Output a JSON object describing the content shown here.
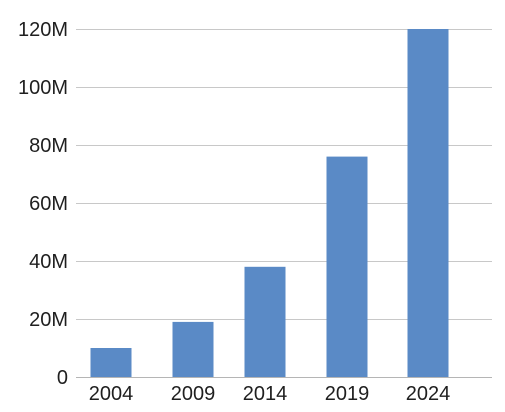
{
  "chart_data": {
    "type": "bar",
    "categories": [
      "2004",
      "2009",
      "2014",
      "2019",
      "2024"
    ],
    "values": [
      10,
      19,
      38,
      76,
      120
    ],
    "ylim": [
      0,
      120
    ],
    "yticks": [
      0,
      20,
      40,
      60,
      80,
      100,
      120
    ],
    "ytick_labels": [
      "0",
      "20M",
      "40M",
      "60M",
      "80M",
      "100M",
      "120M"
    ],
    "title": "",
    "xlabel": "",
    "ylabel": "",
    "grid": true,
    "legend": "none",
    "bar_color": "#5a8ac6"
  }
}
